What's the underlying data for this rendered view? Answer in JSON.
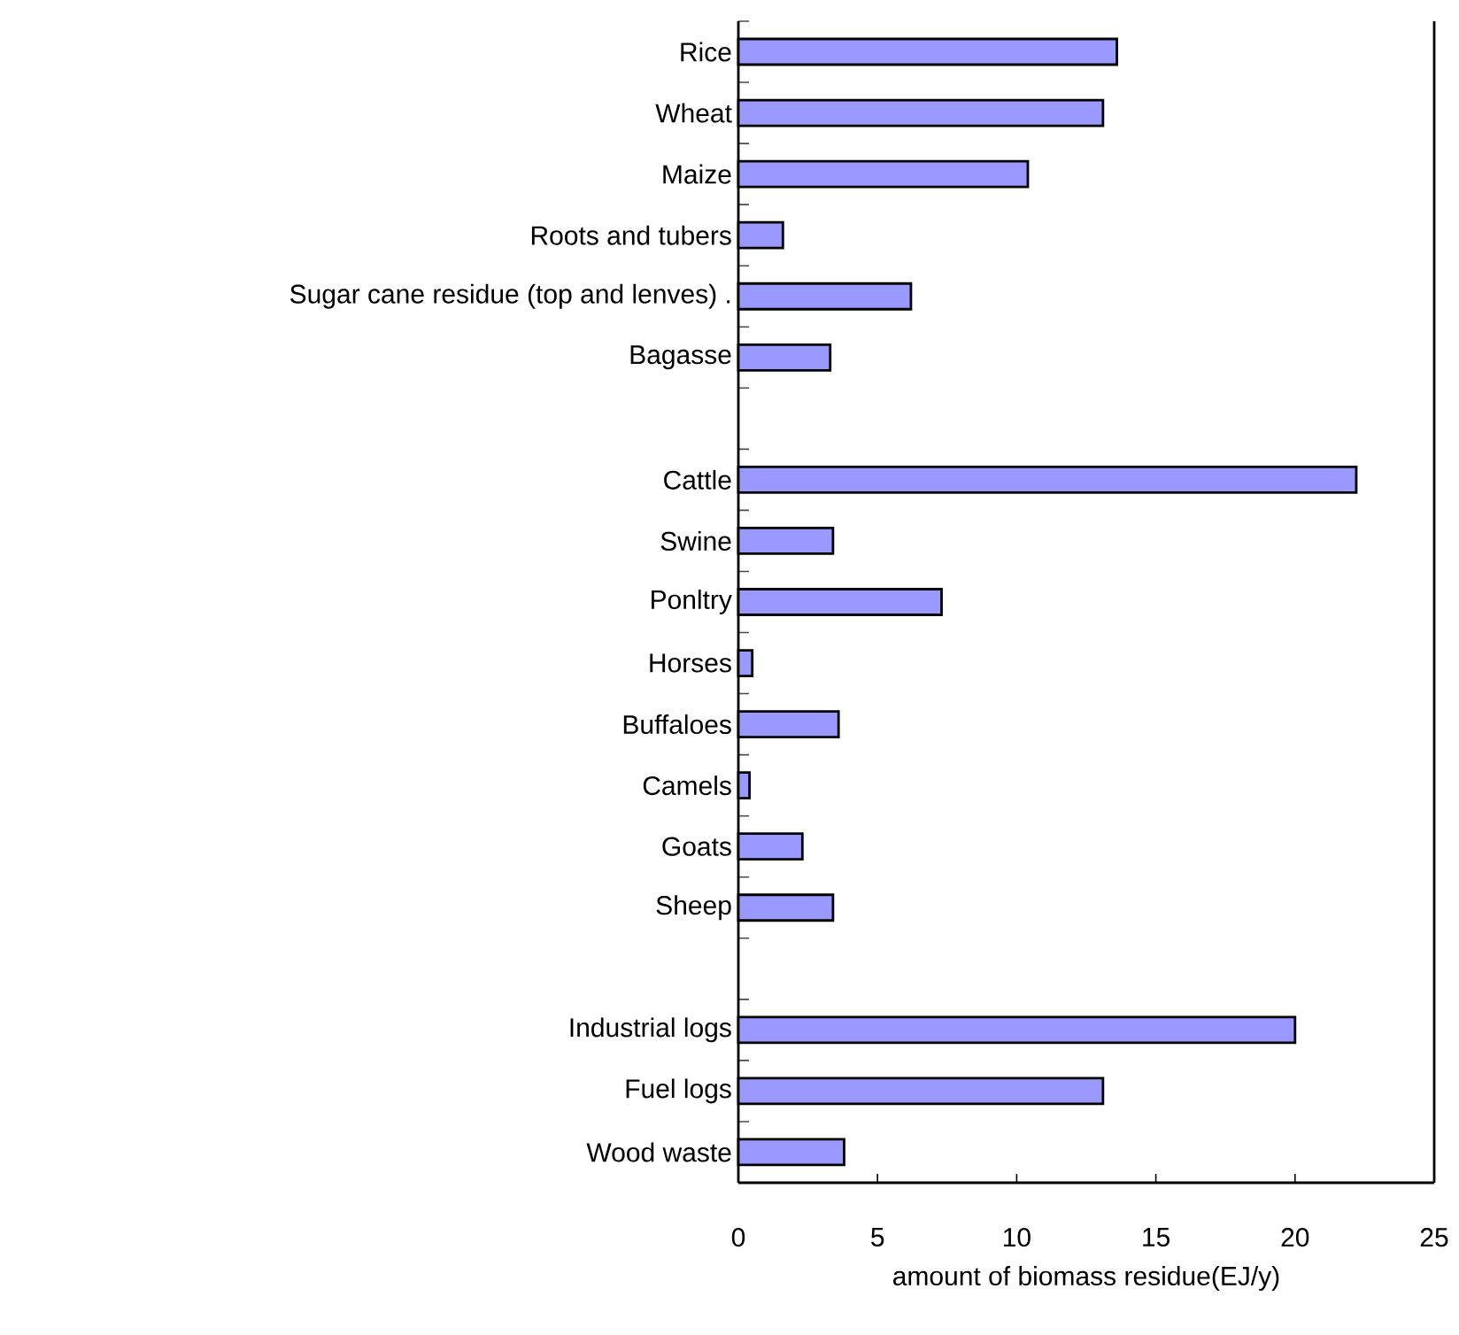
{
  "chart_data": {
    "type": "bar",
    "orientation": "horizontal",
    "xlabel": "amount of biomass residue(EJ/y)",
    "categories": [
      "Rice",
      "Wheat",
      "Maize",
      "Roots and tubers",
      "Sugar cane residue (top and lenves) .",
      "Bagasse",
      null,
      "Cattle",
      "Swine",
      "Ponltry",
      "Horses",
      "Buffaloes",
      "Camels",
      "Goats",
      "Sheep",
      null,
      "Industrial logs",
      "Fuel logs",
      "Wood waste"
    ],
    "values": [
      13.6,
      13.1,
      10.4,
      1.6,
      6.2,
      3.3,
      null,
      22.2,
      3.4,
      7.3,
      0.5,
      3.6,
      0.4,
      2.3,
      3.4,
      null,
      20.0,
      13.1,
      3.8
    ],
    "color": "#9999ff",
    "xlim": [
      0,
      25
    ],
    "xticks": [
      0,
      5,
      10,
      15,
      20,
      25
    ]
  }
}
